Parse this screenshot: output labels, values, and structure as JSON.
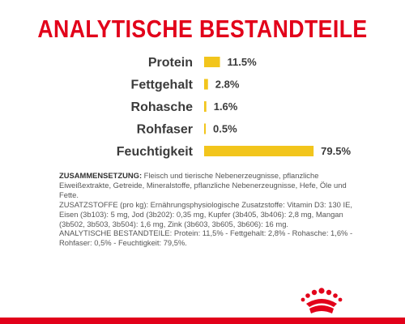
{
  "header": {
    "title": "ANALYTISCHE BESTANDTEILE"
  },
  "chart_data": {
    "type": "bar",
    "orientation": "horizontal",
    "title": "ANALYTISCHE BESTANDTEILE",
    "categories": [
      "Protein",
      "Fettgehalt",
      "Rohasche",
      "Rohfaser",
      "Feuchtigkeit"
    ],
    "values": [
      11.5,
      2.8,
      1.6,
      0.5,
      79.5
    ],
    "value_labels": [
      "11.5%",
      "2.8%",
      "1.6%",
      "0.5%",
      "79.5%"
    ],
    "unit": "%",
    "xlim": [
      0,
      80
    ],
    "grid": false,
    "legend": "none",
    "bar_color": "#f2c51c"
  },
  "composition": {
    "zusammensetzung_head": "ZUSAMMENSETZUNG:",
    "zusammensetzung_text": " Fleisch und tierische Nebenerzeugnisse, pflanzliche Eiweißextrakte, Getreide, Mineralstoffe, pflanzliche Nebenerzeugnisse, Hefe, Öle und Fette.",
    "zusatzstoffe": "ZUSATZSTOFFE (pro kg): Ernährungsphysiologische Zusatzstoffe: Vitamin D3: 130 IE, Eisen (3b103): 5 mg, Jod (3b202): 0,35 mg, Kupfer (3b405, 3b406): 2,8 mg, Mangan (3b502, 3b503, 3b504): 1,6 mg, Zink (3b603, 3b605, 3b606): 16 mg.",
    "analytische": "ANALYTISCHE BESTANDTEILE: Protein: 11,5% - Fettgehalt: 2,8% - Rohasche: 1,6% - Rohfaser: 0,5% - Feuchtigkeit: 79,5%."
  },
  "brand": {
    "logo": "royal-canin-crown-logo",
    "accent_color": "#e2001a"
  }
}
